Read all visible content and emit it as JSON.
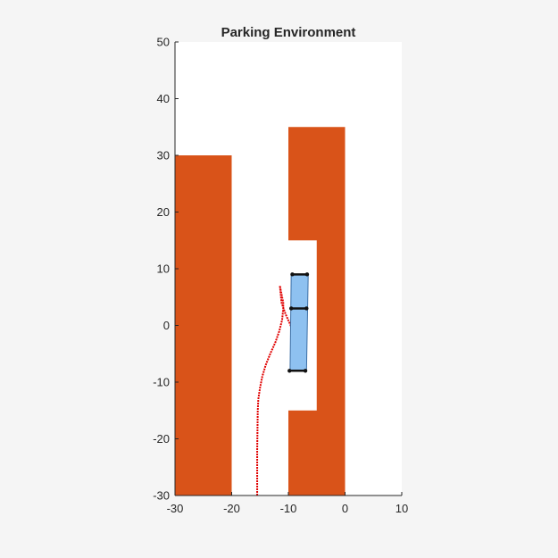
{
  "chart_data": {
    "type": "line",
    "title": "Parking Environment",
    "xlabel": "",
    "ylabel": "",
    "xlim": [
      -30,
      10
    ],
    "ylim": [
      -30,
      50
    ],
    "xticks": [
      -30,
      -20,
      -10,
      0,
      10
    ],
    "yticks": [
      -30,
      -20,
      -10,
      0,
      10,
      20,
      30,
      40,
      50
    ],
    "grid": false,
    "colors": {
      "obstacle": "#d95319",
      "path": "#e00000",
      "vehicle_fill": "#8ec1f0",
      "vehicle_edge": "#3b6ea5",
      "axle": "#111111",
      "background": "#ffffff",
      "figure_background": "#f5f5f5"
    },
    "obstacles": [
      {
        "name": "left-block",
        "x_range": [
          -30,
          -20
        ],
        "y_range": [
          -30,
          30
        ]
      },
      {
        "name": "right-block",
        "polygon": [
          [
            -10,
            -30
          ],
          [
            0,
            -30
          ],
          [
            0,
            35
          ],
          [
            -10,
            35
          ],
          [
            -10,
            15
          ],
          [
            -5,
            15
          ],
          [
            -5,
            -15
          ],
          [
            -10,
            -15
          ]
        ]
      }
    ],
    "series": [
      {
        "x": [
          -15.5,
          -15.5,
          -15.4,
          -15.3,
          -15.0,
          -14.6,
          -14.0,
          -13.2,
          -12.3,
          -11.6,
          -11.1,
          -10.9,
          -10.9,
          -11.2,
          -11.5,
          -11.2,
          -10.5,
          -9.6,
          -8.9,
          -8.5,
          -8.3,
          -8.2,
          -8.2
        ],
        "y": [
          -30,
          -22,
          -15,
          -13,
          -11,
          -9,
          -7,
          -5,
          -3,
          -1,
          1,
          3,
          4,
          5.5,
          7,
          4,
          2,
          0,
          -2,
          -4,
          -6,
          -7.5,
          -8
        ]
      }
    ],
    "vehicle": {
      "corners": [
        [
          -9.5,
          9
        ],
        [
          -6.5,
          9
        ],
        [
          -6.8,
          -8
        ],
        [
          -9.7,
          -8
        ]
      ],
      "axles": [
        {
          "x": [
            -9.3,
            -6.7
          ],
          "y": [
            9,
            9
          ]
        },
        {
          "x": [
            -9.5,
            -6.8
          ],
          "y": [
            3,
            3
          ]
        },
        {
          "x": [
            -9.8,
            -7.0
          ],
          "y": [
            -8,
            -8
          ]
        }
      ]
    }
  }
}
